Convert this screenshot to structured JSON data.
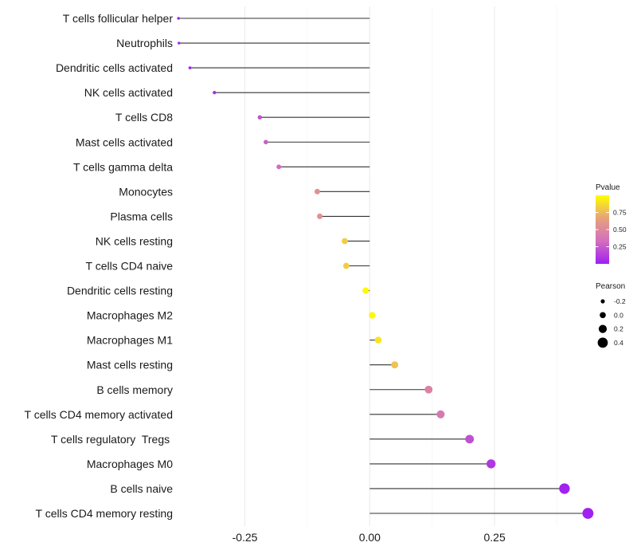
{
  "chart_data": {
    "type": "lollipop",
    "title": "",
    "xlabel": "",
    "ylabel": "",
    "xlim": [
      -0.38,
      0.43
    ],
    "xticks": [
      -0.25,
      0.0,
      0.25
    ],
    "xtick_labels": [
      "-0.25",
      "0.00",
      "0.25"
    ],
    "grid": true,
    "categories": [
      "T cells follicular helper",
      "Neutrophils",
      "Dendritic cells activated",
      "NK cells activated",
      "T cells CD8",
      "Mast cells activated",
      "T cells gamma delta",
      "Monocytes",
      "Plasma cells",
      "NK cells resting",
      "T cells CD4 naive",
      "Dendritic cells resting",
      "Macrophages M2",
      "Macrophages M1",
      "Mast cells resting",
      "B cells memory",
      "T cells CD4 memory activated",
      "T cells regulatory  Tregs ",
      "Macrophages M0",
      "B cells naive",
      "T cells CD4 memory resting"
    ],
    "pearson": [
      -0.383,
      -0.382,
      -0.36,
      -0.311,
      -0.22,
      -0.208,
      -0.182,
      -0.105,
      -0.1,
      -0.05,
      -0.047,
      -0.008,
      0.005,
      0.017,
      0.05,
      0.118,
      0.142,
      0.2,
      0.243,
      0.39,
      0.437
    ],
    "pvalue": [
      0.01,
      0.01,
      0.02,
      0.06,
      0.22,
      0.27,
      0.32,
      0.55,
      0.56,
      0.82,
      0.82,
      0.98,
      0.97,
      0.9,
      0.78,
      0.46,
      0.4,
      0.2,
      0.1,
      0.01,
      0.005
    ],
    "color_legend": {
      "title": "Pvalue",
      "ticks": [
        0.25,
        0.5,
        0.75
      ],
      "tick_labels": [
        "0.25",
        "0.50",
        "0.75"
      ],
      "range": [
        0.0,
        1.0
      ],
      "colors": [
        "#a020f0",
        "#d46ec0",
        "#e6a27a",
        "#ffff00"
      ]
    },
    "size_legend": {
      "title": "Pearson",
      "values": [
        -0.2,
        0.0,
        0.2,
        0.4
      ],
      "labels": [
        "-0.2",
        "0.0",
        "0.2",
        "0.4"
      ]
    },
    "legend_position": "right"
  }
}
